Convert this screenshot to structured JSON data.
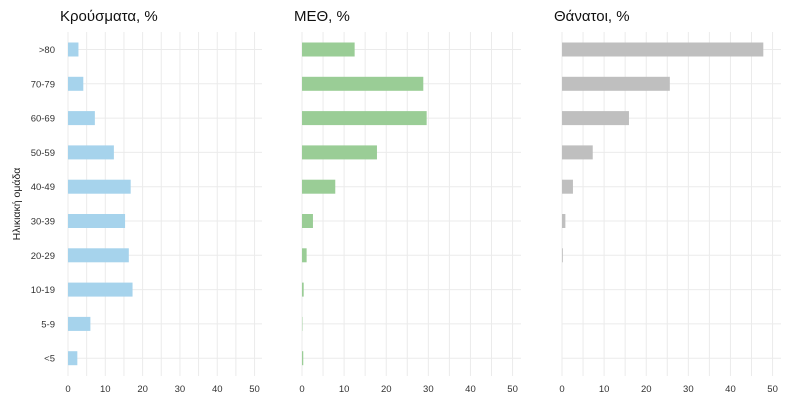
{
  "chart_data": {
    "type": "bar",
    "orientation": "horizontal",
    "ylabel": "Ηλικιακή ομάδα",
    "categories": [
      ">80",
      "70-79",
      "60-69",
      "50-59",
      "40-49",
      "30-39",
      "20-29",
      "10-19",
      "5-9",
      "<5"
    ],
    "xlim": [
      0,
      52
    ],
    "xticks": [
      0,
      10,
      20,
      30,
      40,
      50
    ],
    "grid": true,
    "legend": "none",
    "panels": [
      {
        "title": "Κρούσματα, %",
        "color": "#a6d3ec",
        "values": [
          2.8,
          4.1,
          7.2,
          12.3,
          16.8,
          15.3,
          16.3,
          17.3,
          6.0,
          2.5
        ]
      },
      {
        "title": "ΜΕΘ, %",
        "color": "#9acd96",
        "values": [
          12.5,
          28.8,
          29.6,
          17.8,
          7.9,
          2.6,
          1.1,
          0.4,
          0.1,
          0.3
        ]
      },
      {
        "title": "Θάνατοι, %",
        "color": "#bfbfbf",
        "values": [
          47.8,
          25.6,
          15.9,
          7.3,
          2.6,
          0.8,
          0.2,
          0.0,
          0.0,
          0.0
        ]
      }
    ]
  }
}
